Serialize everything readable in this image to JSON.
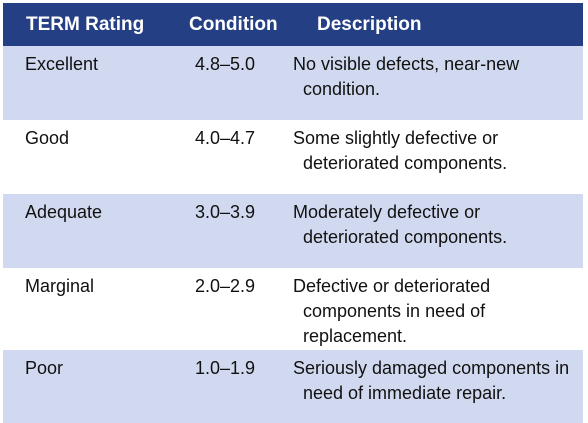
{
  "table": {
    "headers": {
      "rating": "TERM Rating",
      "condition": "Condition",
      "description": "Description"
    },
    "rows": [
      {
        "rating": "Excellent",
        "range": "4.8–5.0",
        "description": "No visible defects, near-new condition."
      },
      {
        "rating": "Good",
        "range": "4.0–4.7",
        "description": "Some slightly defective or deteriorated components."
      },
      {
        "rating": "Adequate",
        "range": "3.0–3.9",
        "description": "Moderately defective or deteriorated components."
      },
      {
        "rating": "Marginal",
        "range": "2.0–2.9",
        "description": "Defective or deteriorated components in need of replacement."
      },
      {
        "rating": "Poor",
        "range": "1.0–1.9",
        "description": "Seriously damaged components in need of immediate repair."
      }
    ]
  },
  "colors": {
    "header_bg": "#253f85",
    "header_text": "#ffffff",
    "shaded_row": "#d0d9ef",
    "plain_row": "#ffffff"
  }
}
